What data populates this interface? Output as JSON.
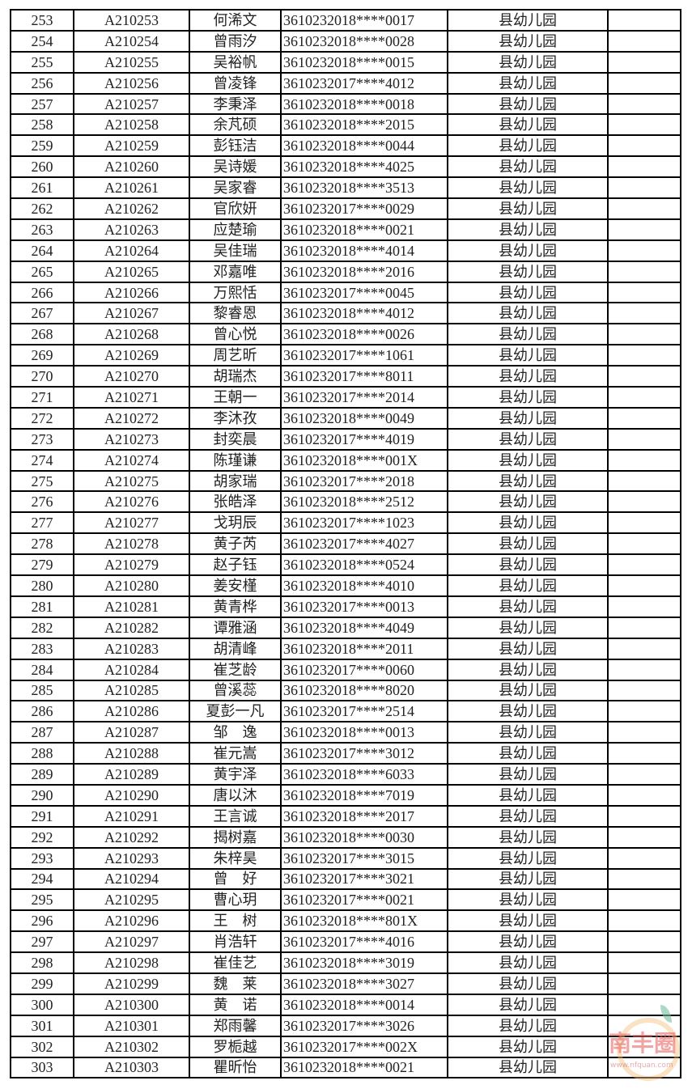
{
  "table": {
    "school": "县幼儿园",
    "rows": [
      [
        "253",
        "A210253",
        "何浠文",
        "3610232018****0017"
      ],
      [
        "254",
        "A210254",
        "曾雨汐",
        "3610232018****0028"
      ],
      [
        "255",
        "A210255",
        "吴裕帆",
        "3610232018****0015"
      ],
      [
        "256",
        "A210256",
        "曾凌锋",
        "3610232017****4012"
      ],
      [
        "257",
        "A210257",
        "李秉泽",
        "3610232018****0018"
      ],
      [
        "258",
        "A210258",
        "余芃硕",
        "3610232018****2015"
      ],
      [
        "259",
        "A210259",
        "彭钰洁",
        "3610232018****0044"
      ],
      [
        "260",
        "A210260",
        "吴诗媛",
        "3610232018****4025"
      ],
      [
        "261",
        "A210261",
        "吴家睿",
        "3610232018****3513"
      ],
      [
        "262",
        "A210262",
        "官欣妍",
        "3610232017****0029"
      ],
      [
        "263",
        "A210263",
        "应楚瑜",
        "3610232018****0021"
      ],
      [
        "264",
        "A210264",
        "吴佳瑞",
        "3610232018****4014"
      ],
      [
        "265",
        "A210265",
        "邓嘉唯",
        "3610232018****2016"
      ],
      [
        "266",
        "A210266",
        "万熙恬",
        "3610232017****0045"
      ],
      [
        "267",
        "A210267",
        "黎睿恩",
        "3610232018****4012"
      ],
      [
        "268",
        "A210268",
        "曾心悦",
        "3610232018****0026"
      ],
      [
        "269",
        "A210269",
        "周艺昕",
        "3610232017****1061"
      ],
      [
        "270",
        "A210270",
        "胡瑞杰",
        "3610232017****8011"
      ],
      [
        "271",
        "A210271",
        "王朝一",
        "3610232017****2014"
      ],
      [
        "272",
        "A210272",
        "李沐孜",
        "3610232018****0049"
      ],
      [
        "273",
        "A210273",
        "封奕晨",
        "3610232017****4019"
      ],
      [
        "274",
        "A210274",
        "陈瑾谦",
        "3610232018****001X"
      ],
      [
        "275",
        "A210275",
        "胡家瑞",
        "3610232017****2018"
      ],
      [
        "276",
        "A210276",
        "张皓泽",
        "3610232018****2512"
      ],
      [
        "277",
        "A210277",
        "戈玥辰",
        "3610232017****1023"
      ],
      [
        "278",
        "A210278",
        "黄子芮",
        "3610232017****4027"
      ],
      [
        "279",
        "A210279",
        "赵子钰",
        "3610232018****0524"
      ],
      [
        "280",
        "A210280",
        "姜安槿",
        "3610232018****4010"
      ],
      [
        "281",
        "A210281",
        "黄青桦",
        "3610232017****0013"
      ],
      [
        "282",
        "A210282",
        "谭雅涵",
        "3610232018****4049"
      ],
      [
        "283",
        "A210283",
        "胡清峰",
        "3610232018****2011"
      ],
      [
        "284",
        "A210284",
        "崔芝龄",
        "3610232017****0060"
      ],
      [
        "285",
        "A210285",
        "曾溪蕊",
        "3610232018****8020"
      ],
      [
        "286",
        "A210286",
        "夏彭一凡",
        "3610232017****2514"
      ],
      [
        "287",
        "A210287",
        "邹　逸",
        "3610232018****0013"
      ],
      [
        "288",
        "A210288",
        "崔元嵩",
        "3610232017****3012"
      ],
      [
        "289",
        "A210289",
        "黄宇泽",
        "3610232018****6033"
      ],
      [
        "290",
        "A210290",
        "唐以沐",
        "3610232018****7019"
      ],
      [
        "291",
        "A210291",
        "王言诚",
        "3610232018****2017"
      ],
      [
        "292",
        "A210292",
        "揭树嘉",
        "3610232018****0030"
      ],
      [
        "293",
        "A210293",
        "朱梓昊",
        "3610232017****3015"
      ],
      [
        "294",
        "A210294",
        "曾　好",
        "3610232017****3021"
      ],
      [
        "295",
        "A210295",
        "曹心玥",
        "3610232017****0021"
      ],
      [
        "296",
        "A210296",
        "王　树",
        "3610232018****801X"
      ],
      [
        "297",
        "A210297",
        "肖浩轩",
        "3610232017****4016"
      ],
      [
        "298",
        "A210298",
        "崔佳艺",
        "3610232018****3019"
      ],
      [
        "299",
        "A210299",
        "魏　莱",
        "3610232018****3027"
      ],
      [
        "300",
        "A210300",
        "黄　诺",
        "3610232018****0014"
      ],
      [
        "301",
        "A210301",
        "郑雨馨",
        "3610232017****3026"
      ],
      [
        "302",
        "A210302",
        "罗栀越",
        "3610232017****002X"
      ],
      [
        "303",
        "A210303",
        "瞿昕怡",
        "3610232018****0021"
      ]
    ]
  },
  "watermark": {
    "title": "南丰圈",
    "url": "www.nfquan.com"
  }
}
